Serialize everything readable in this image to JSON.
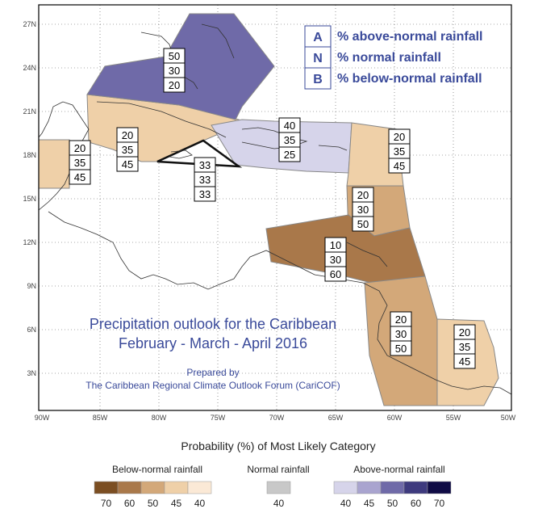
{
  "title": {
    "line1": "Precipitation outlook for the Caribbean",
    "line2": "February - March - April 2016",
    "prepared_by": "Prepared by",
    "organization": "The Caribbean Regional Climate Outlook Forum (CariCOF)"
  },
  "key": [
    {
      "letter": "A",
      "text": "% above-normal rainfall"
    },
    {
      "letter": "N",
      "text": "% normal rainfall"
    },
    {
      "letter": "B",
      "text": "% below-normal rainfall"
    }
  ],
  "axes": {
    "lat_labels": [
      "27N",
      "24N",
      "21N",
      "18N",
      "15N",
      "12N",
      "9N",
      "6N",
      "3N"
    ],
    "lon_labels": [
      "90W",
      "85W",
      "80W",
      "75W",
      "70W",
      "65W",
      "60W",
      "55W",
      "50W"
    ]
  },
  "zones": [
    {
      "id": "bahamas",
      "values": [
        "50",
        "30",
        "20"
      ],
      "color": "#6f6aa8"
    },
    {
      "id": "cuba",
      "values": [
        "20",
        "35",
        "45"
      ],
      "color": "#efd0a8"
    },
    {
      "id": "belize",
      "values": [
        "20",
        "35",
        "45"
      ],
      "color": "#efd0a8"
    },
    {
      "id": "jamaica",
      "values": [
        "33",
        "33",
        "33"
      ],
      "color": "#ffffff"
    },
    {
      "id": "hispaniola-pr",
      "values": [
        "40",
        "35",
        "25"
      ],
      "color": "#d6d4ea"
    },
    {
      "id": "leeward-islands",
      "values": [
        "20",
        "35",
        "45"
      ],
      "color": "#efd0a8"
    },
    {
      "id": "windward-islands",
      "values": [
        "20",
        "30",
        "50"
      ],
      "color": "#d3a879"
    },
    {
      "id": "abc-trinidad",
      "values": [
        "10",
        "30",
        "60"
      ],
      "color": "#a9784a"
    },
    {
      "id": "guyana-suriname",
      "values": [
        "20",
        "30",
        "50"
      ],
      "color": "#d3a879"
    },
    {
      "id": "french-guiana",
      "values": [
        "20",
        "35",
        "45"
      ],
      "color": "#efd0a8"
    }
  ],
  "legend": {
    "title": "Probability (%) of Most Likely Category",
    "below": {
      "label": "Below-normal rainfall",
      "values": [
        "70",
        "60",
        "50",
        "45",
        "40"
      ],
      "colors": [
        "#7b4e22",
        "#a9784a",
        "#d3a879",
        "#efd0a8",
        "#fbe9d6"
      ]
    },
    "normal": {
      "label": "Normal rainfall",
      "values": [
        "40"
      ],
      "colors": [
        "#c8c8c8"
      ]
    },
    "above": {
      "label": "Above-normal rainfall",
      "values": [
        "40",
        "45",
        "50",
        "60",
        "70"
      ],
      "colors": [
        "#d6d4ea",
        "#a9a4cf",
        "#6f6aa8",
        "#3e3a7e",
        "#0f0b45"
      ]
    }
  }
}
